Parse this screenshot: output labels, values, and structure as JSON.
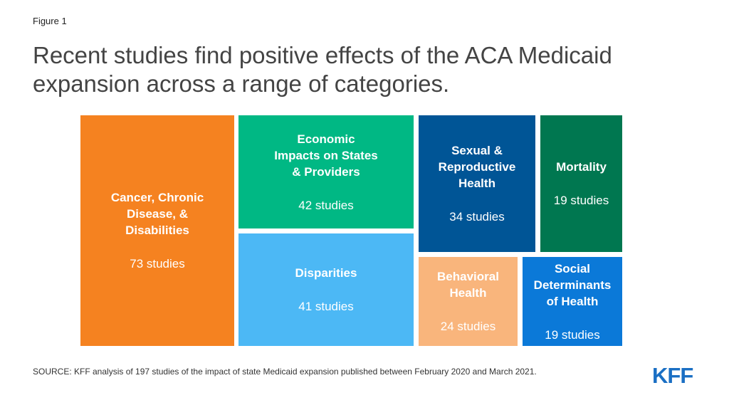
{
  "figure_label": "Figure 1",
  "title": "Recent studies find positive effects of the ACA Medicaid expansion across a range of categories.",
  "source": "SOURCE: KFF analysis of 197 studies of the impact of state Medicaid expansion published between February 2020 and March 2021.",
  "logo": "KFF",
  "chart_data": {
    "type": "treemap",
    "title": "",
    "unit": "studies",
    "items": [
      {
        "name": "Cancer, Chronic\nDisease, &\nDisabilities",
        "value": 73,
        "label": "73 studies",
        "color": "#f58220"
      },
      {
        "name": "Economic\nImpacts on States\n& Providers",
        "value": 42,
        "label": "42 studies",
        "color": "#00b884"
      },
      {
        "name": "Disparities",
        "value": 41,
        "label": "41 studies",
        "color": "#4cb8f5"
      },
      {
        "name": "Sexual &\nReproductive\nHealth",
        "value": 34,
        "label": "34 studies",
        "color": "#005596"
      },
      {
        "name": "Mortality",
        "value": 19,
        "label": "19 studies",
        "color": "#007750"
      },
      {
        "name": "Behavioral\nHealth",
        "value": 24,
        "label": "24 studies",
        "color": "#f9b57c"
      },
      {
        "name": "Social\nDeterminants\nof Health",
        "value": 19,
        "label": "19 studies",
        "color": "#0b79d8"
      }
    ]
  }
}
